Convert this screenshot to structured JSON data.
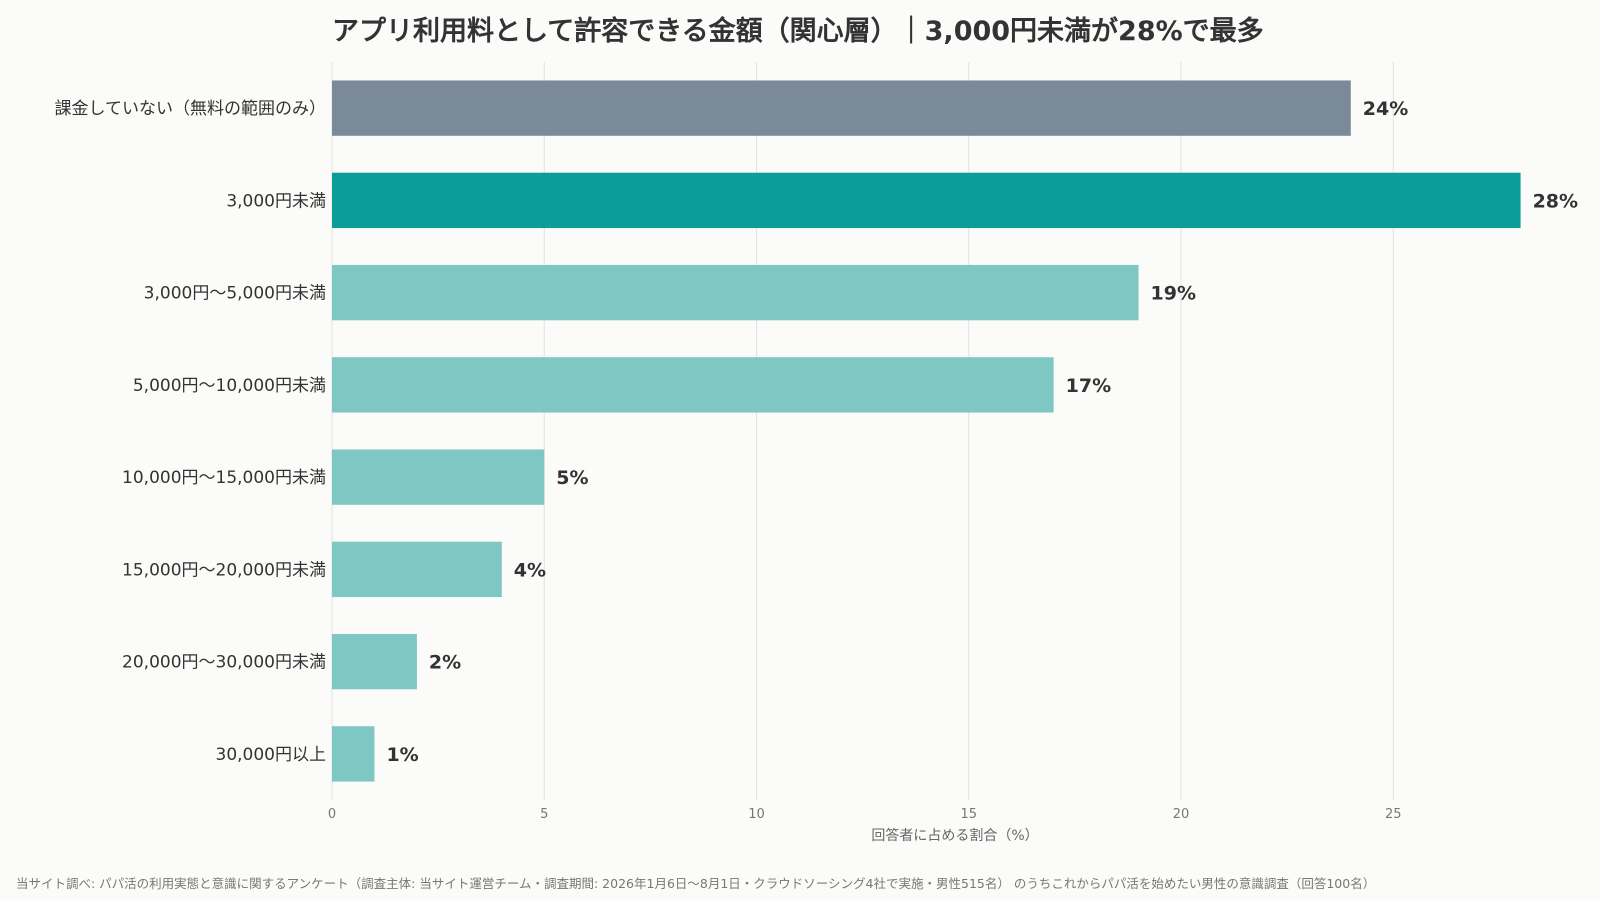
{
  "chart_data": {
    "type": "bar",
    "orientation": "horizontal",
    "title": "アプリ利用料として許容できる金額（関心層）｜3,000円未満が28%で最多",
    "categories": [
      "課金していない（無料の範囲のみ）",
      "3,000円未満",
      "3,000円〜5,000円未満",
      "5,000円〜10,000円未満",
      "10,000円〜15,000円未満",
      "15,000円〜20,000円未満",
      "20,000円〜30,000円未満",
      "30,000円以上"
    ],
    "values": [
      24,
      28,
      19,
      17,
      5,
      4,
      2,
      1
    ],
    "value_labels": [
      "24%",
      "28%",
      "19%",
      "17%",
      "5%",
      "4%",
      "2%",
      "1%"
    ],
    "bar_colors": [
      "#7b8a98",
      "#0b9e99",
      "#7fc7c3",
      "#7fc7c3",
      "#7fc7c3",
      "#7fc7c3",
      "#7fc7c3",
      "#7fc7c3"
    ],
    "xlabel": "回答者に占める割合（%）",
    "ylabel": "",
    "xlim": [
      0,
      29.4
    ],
    "xticks": [
      0,
      5,
      10,
      15,
      20,
      25
    ],
    "grid": true,
    "legend": "none",
    "source": "当サイト調べ: パパ活の利用実態と意識に関するアンケート（調査主体: 当サイト運営チーム・調査期間: 2026年1月6日〜8月1日・クラウドソーシング4社で実施・男性515名） のうちこれからパパ活を始めたい男性の意識調査（回答100名）"
  }
}
